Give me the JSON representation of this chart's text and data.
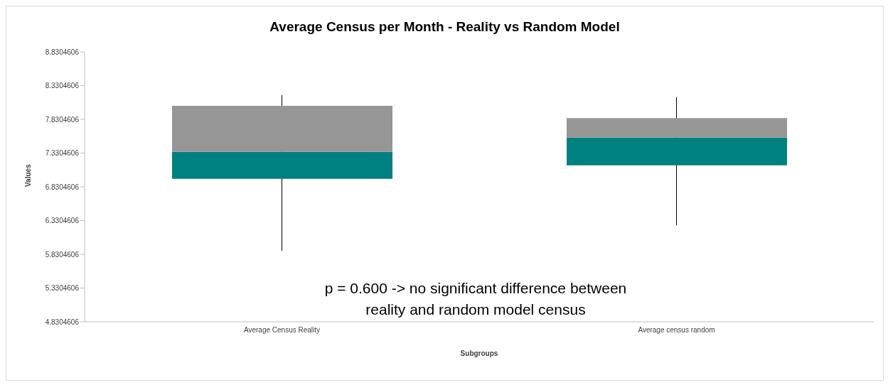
{
  "chart_data": {
    "type": "box",
    "title": "Average Census per Month - Reality vs Random Model",
    "xlabel": "Subgroups",
    "ylabel": "Values",
    "categories": [
      "Average Census Reality",
      "Average census random"
    ],
    "series": [
      {
        "color": "#969696",
        "colors": [
          "#008080",
          "#008080"
        ],
        "boxes": [
          {
            "low": 5.88,
            "q1": 6.95,
            "median": 7.35,
            "q3": 8.03,
            "high": 8.19
          },
          {
            "low": 6.26,
            "q1": 7.15,
            "median": 7.56,
            "q3": 7.85,
            "high": 8.16
          }
        ]
      }
    ],
    "ylim": [
      4.8304606,
      8.8304606
    ],
    "yticks": [
      4.8304606,
      5.3304606,
      5.8304606,
      6.3304606,
      6.8304606,
      7.3304606,
      7.8304606,
      8.3304606,
      8.8304606
    ],
    "grid": false,
    "legend": false,
    "annotations": [
      "p = 0.600 -> no significant difference between reality and random model census"
    ]
  }
}
